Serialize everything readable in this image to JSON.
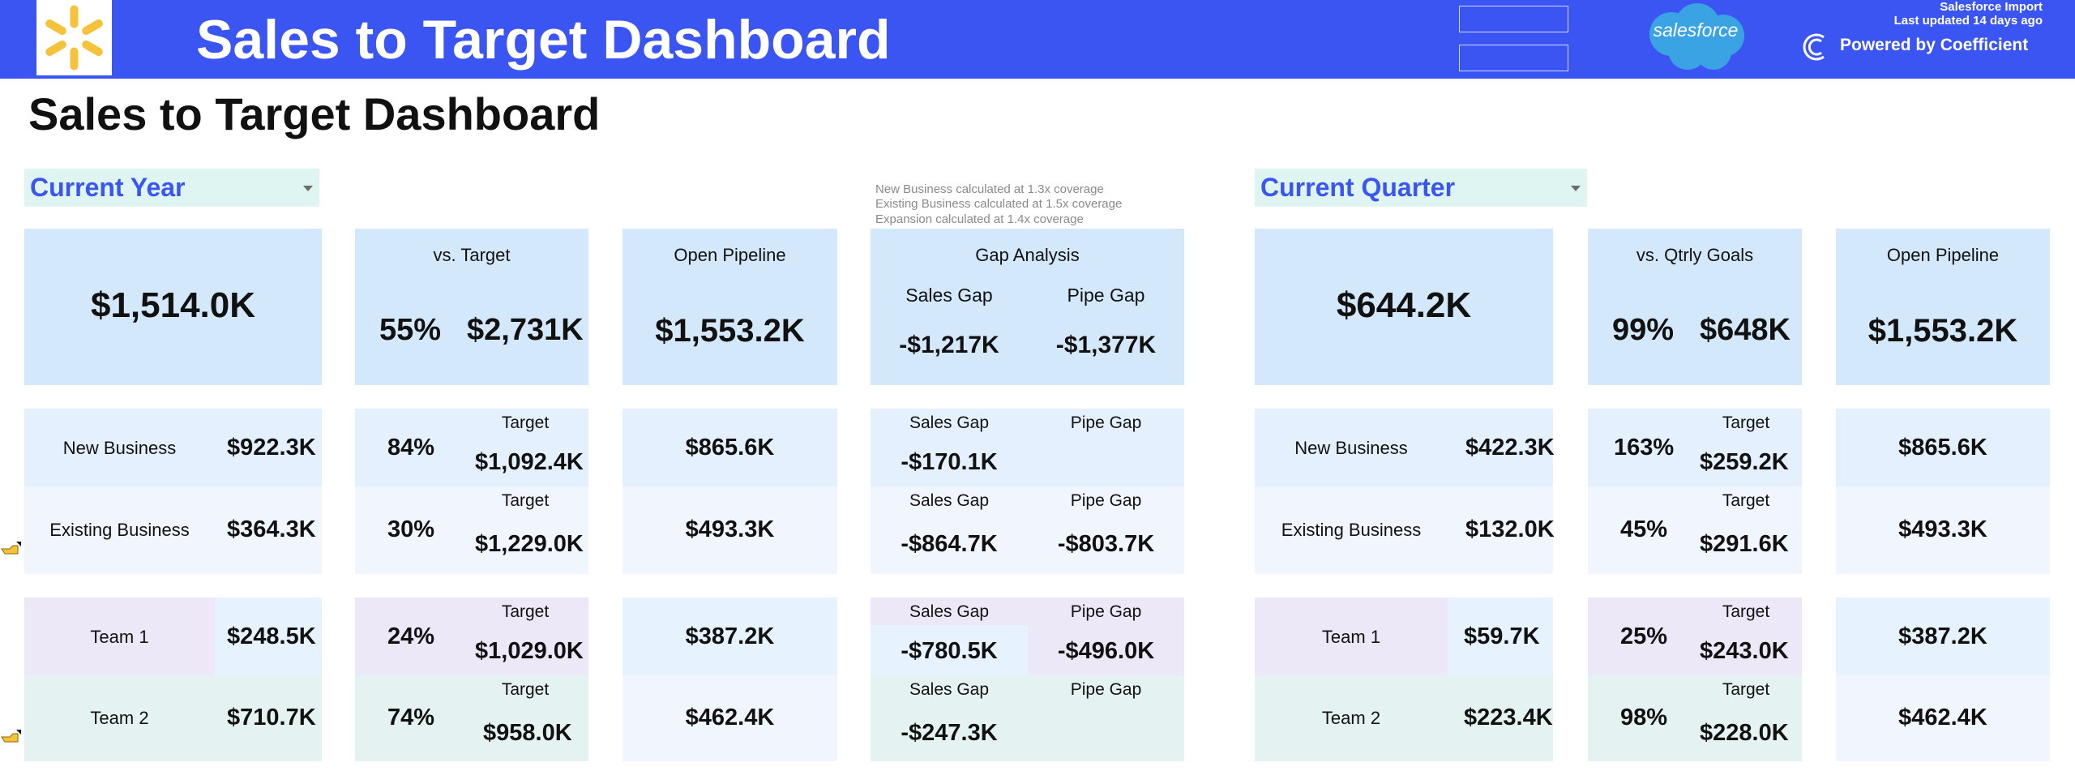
{
  "header": {
    "title": "Sales to Target Dashboard",
    "brand_text": "salesforce",
    "import_title": "Salesforce Import",
    "import_updated": "Last updated 14 days ago",
    "powered_by": "Powered by Coefficient",
    "banner_color": "#3b55f2",
    "accent_color": "#3b55f2",
    "logo_color": "#f5c23a",
    "salesforce_color": "#3aa3e3"
  },
  "page_title": "Sales to Target Dashboard",
  "notes": [
    "New Business calculated at 1.3x coverage",
    "Existing Business calculated at 1.5x coverage",
    "Expansion calculated at 1.4x coverage"
  ],
  "year": {
    "selector": "Current Year",
    "total": "$1,514.0K",
    "target_label": "vs. Target",
    "target_pct": "55%",
    "target_val": "$2,731K",
    "pipeline_label": "Open Pipeline",
    "pipeline_val": "$1,553.2K",
    "gap_title": "Gap Analysis",
    "sales_gap_label": "Sales Gap",
    "pipe_gap_label": "Pipe Gap",
    "sales_gap": "-$1,217K",
    "pipe_gap": "-$1,377K",
    "rows": {
      "new": {
        "label": "New Business",
        "value": "$922.3K",
        "pct": "84%",
        "target_label": "Target",
        "target": "$1,092.4K",
        "pipeline": "$865.6K",
        "sales_gap_label": "Sales Gap",
        "pipe_gap_label": "Pipe Gap",
        "sales_gap": "-$170.1K",
        "pipe_gap": ""
      },
      "existing": {
        "label": "Existing Business",
        "value": "$364.3K",
        "pct": "30%",
        "target_label": "Target",
        "target": "$1,229.0K",
        "pipeline": "$493.3K",
        "sales_gap_label": "Sales Gap",
        "pipe_gap_label": "Pipe Gap",
        "sales_gap": "-$864.7K",
        "pipe_gap": "-$803.7K"
      },
      "team1": {
        "label": "Team 1",
        "value": "$248.5K",
        "pct": "24%",
        "target_label": "Target",
        "target": "$1,029.0K",
        "pipeline": "$387.2K",
        "sales_gap_label": "Sales Gap",
        "pipe_gap_label": "Pipe Gap",
        "sales_gap": "-$780.5K",
        "pipe_gap": "-$496.0K"
      },
      "team2": {
        "label": "Team 2",
        "value": "$710.7K",
        "pct": "74%",
        "target_label": "Target",
        "target": "$958.0K",
        "pipeline": "$462.4K",
        "sales_gap_label": "Sales Gap",
        "pipe_gap_label": "Pipe Gap",
        "sales_gap": "-$247.3K",
        "pipe_gap": ""
      }
    }
  },
  "quarter": {
    "selector": "Current Quarter",
    "total": "$644.2K",
    "target_label": "vs. Qtrly Goals",
    "target_pct": "99%",
    "target_val": "$648K",
    "pipeline_label": "Open Pipeline",
    "pipeline_val": "$1,553.2K",
    "rows": {
      "new": {
        "label": "New Business",
        "value": "$422.3K",
        "pct": "163%",
        "target_label": "Target",
        "target": "$259.2K",
        "pipeline": "$865.6K"
      },
      "existing": {
        "label": "Existing Business",
        "value": "$132.0K",
        "pct": "45%",
        "target_label": "Target",
        "target": "$291.6K",
        "pipeline": "$493.3K"
      },
      "team1": {
        "label": "Team 1",
        "value": "$59.7K",
        "pct": "25%",
        "target_label": "Target",
        "target": "$243.0K",
        "pipeline": "$387.2K"
      },
      "team2": {
        "label": "Team 2",
        "value": "$223.4K",
        "pct": "98%",
        "target_label": "Target",
        "target": "$228.0K",
        "pipeline": "$462.4K"
      }
    }
  }
}
